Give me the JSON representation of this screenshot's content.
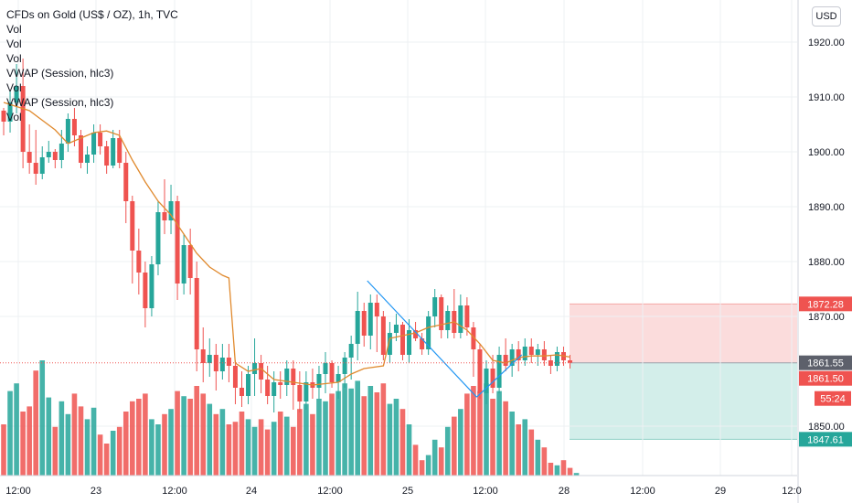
{
  "header": {
    "title": "CFDs on Gold (US$ / OZ), 1h, TVC",
    "indicators": [
      "Vol",
      "Vol",
      "Vol",
      "VWAP (Session, hlc3)",
      "Vol",
      "VWAP (Session, hlc3)",
      "Vol"
    ],
    "currency_button": "USD"
  },
  "colors": {
    "up": "#26a69a",
    "down": "#ef5350",
    "vwap": "#e08a2e",
    "trendline": "#2196f3",
    "stop_zone": "#fbdcdc",
    "target_zone": "#d3eeea",
    "grid": "#eef0f3"
  },
  "chart_data": {
    "type": "candlestick",
    "symbol": "CFDs on Gold (US$ / OZ)",
    "interval": "1h",
    "ylim": [
      1841,
      1926
    ],
    "y_ticks": [
      "1920.00",
      "1910.00",
      "1900.00",
      "1890.00",
      "1880.00",
      "1870.00",
      "1850.00"
    ],
    "x_ticks": [
      "12:00",
      "23",
      "12:00",
      "24",
      "12:00",
      "25",
      "12:00",
      "28",
      "12:00",
      "29",
      "12:0"
    ],
    "price_labels": [
      {
        "value": 1872.28,
        "text": "1872.28",
        "role": "stop"
      },
      {
        "value": 1861.55,
        "text": "1861.55",
        "role": "last"
      },
      {
        "value": 1861.5,
        "text": "1861.50",
        "role": "price"
      },
      {
        "value": 1857.9,
        "text": "55:24",
        "role": "countdown"
      },
      {
        "value": 1847.61,
        "text": "1847.61",
        "role": "target"
      }
    ],
    "position": {
      "entry": 1861.55,
      "stop": 1872.28,
      "target": 1847.61
    },
    "trendlines": [
      {
        "from": [
          56.5,
          1876.5
        ],
        "to": [
          73.5,
          1855.3
        ]
      },
      {
        "from": [
          73.5,
          1855.3
        ],
        "to": [
          80.5,
          1863
        ]
      }
    ],
    "candles": [
      [
        1907.5,
        1908.0,
        1903.0,
        1905.5
      ],
      [
        1905.5,
        1911.0,
        1903.5,
        1909.0
      ],
      [
        1909.0,
        1916.0,
        1907.0,
        1912.0
      ],
      [
        1912.0,
        1917.0,
        1897.0,
        1900.0
      ],
      [
        1900.0,
        1905.0,
        1896.0,
        1898.0
      ],
      [
        1898.0,
        1904.0,
        1894.0,
        1896.0
      ],
      [
        1896.0,
        1901.0,
        1895.0,
        1899.0
      ],
      [
        1899.0,
        1902.0,
        1898.0,
        1900.0
      ],
      [
        1900.0,
        1900.5,
        1897.0,
        1898.5
      ],
      [
        1898.5,
        1904.0,
        1897.0,
        1901.5
      ],
      [
        1901.5,
        1907.0,
        1900.0,
        1906.0
      ],
      [
        1906.0,
        1908.0,
        1901.0,
        1903.0
      ],
      [
        1903.0,
        1904.0,
        1897.0,
        1898.0
      ],
      [
        1898.0,
        1901.0,
        1896.0,
        1899.5
      ],
      [
        1899.5,
        1905.0,
        1898.0,
        1903.5
      ],
      [
        1903.5,
        1905.0,
        1899.5,
        1901.0
      ],
      [
        1901.0,
        1902.0,
        1896.0,
        1897.5
      ],
      [
        1897.5,
        1904.0,
        1897.0,
        1902.5
      ],
      [
        1902.5,
        1904.0,
        1897.0,
        1898.0
      ],
      [
        1898.0,
        1900.0,
        1887.0,
        1891.0
      ],
      [
        1891.0,
        1892.0,
        1876.0,
        1882.0
      ],
      [
        1882.0,
        1886.0,
        1874.0,
        1878.0
      ],
      [
        1878.0,
        1880.0,
        1868.0,
        1871.5
      ],
      [
        1871.5,
        1881.0,
        1870.0,
        1879.5
      ],
      [
        1879.5,
        1891.0,
        1877.5,
        1889.0
      ],
      [
        1889.0,
        1895.0,
        1885.0,
        1887.5
      ],
      [
        1887.5,
        1894.0,
        1885.0,
        1891.0
      ],
      [
        1891.0,
        1892.0,
        1873.0,
        1876.0
      ],
      [
        1876.0,
        1885.0,
        1874.0,
        1883.0
      ],
      [
        1883.0,
        1886.0,
        1874.0,
        1877.0
      ],
      [
        1877.0,
        1880.0,
        1860.0,
        1864.0
      ],
      [
        1864.0,
        1868.0,
        1858.0,
        1861.5
      ],
      [
        1861.5,
        1866.0,
        1859.0,
        1863.0
      ],
      [
        1863.0,
        1865.0,
        1856.5,
        1860.0
      ],
      [
        1860.0,
        1865.0,
        1858.5,
        1862.5
      ],
      [
        1862.5,
        1865.0,
        1858.0,
        1861.0
      ],
      [
        1861.0,
        1862.0,
        1854.0,
        1857.0
      ],
      [
        1857.0,
        1860.0,
        1853.5,
        1855.5
      ],
      [
        1855.5,
        1861.0,
        1854.0,
        1859.5
      ],
      [
        1859.5,
        1866.0,
        1855.5,
        1861.5
      ],
      [
        1861.5,
        1863.0,
        1856.0,
        1858.5
      ],
      [
        1858.5,
        1861.0,
        1854.0,
        1855.5
      ],
      [
        1855.5,
        1860.0,
        1852.5,
        1858.0
      ],
      [
        1858.0,
        1860.0,
        1855.0,
        1857.5
      ],
      [
        1857.5,
        1862.0,
        1855.5,
        1860.5
      ],
      [
        1860.5,
        1862.0,
        1853.0,
        1857.5
      ],
      [
        1857.5,
        1860.0,
        1852.5,
        1854.5
      ],
      [
        1854.5,
        1860.0,
        1853.0,
        1858.0
      ],
      [
        1858.0,
        1860.5,
        1855.0,
        1857.0
      ],
      [
        1857.0,
        1861.0,
        1855.0,
        1859.5
      ],
      [
        1859.5,
        1863.5,
        1856.0,
        1861.5
      ],
      [
        1861.5,
        1862.0,
        1857.0,
        1858.0
      ],
      [
        1858.0,
        1861.0,
        1855.0,
        1859.5
      ],
      [
        1859.5,
        1863.5,
        1857.0,
        1862.5
      ],
      [
        1862.5,
        1866.5,
        1858.5,
        1865.0
      ],
      [
        1865.0,
        1874.5,
        1862.0,
        1871.0
      ],
      [
        1871.0,
        1872.5,
        1864.5,
        1866.5
      ],
      [
        1866.5,
        1874.0,
        1864.0,
        1872.5
      ],
      [
        1872.5,
        1874.0,
        1863.5,
        1870.0
      ],
      [
        1870.0,
        1871.0,
        1862.0,
        1863.0
      ],
      [
        1863.0,
        1869.0,
        1861.5,
        1867.0
      ],
      [
        1867.0,
        1870.5,
        1865.5,
        1868.5
      ],
      [
        1868.5,
        1869.0,
        1862.0,
        1863.0
      ],
      [
        1863.0,
        1869.5,
        1861.5,
        1867.5
      ],
      [
        1867.5,
        1869.0,
        1865.5,
        1866.0
      ],
      [
        1866.0,
        1867.0,
        1863.0,
        1864.0
      ],
      [
        1864.0,
        1871.0,
        1863.0,
        1870.0
      ],
      [
        1870.0,
        1875.0,
        1868.0,
        1873.5
      ],
      [
        1873.5,
        1874.0,
        1866.0,
        1867.5
      ],
      [
        1867.5,
        1872.0,
        1866.0,
        1871.0
      ],
      [
        1871.0,
        1875.0,
        1866.0,
        1867.0
      ],
      [
        1867.0,
        1874.0,
        1866.0,
        1872.0
      ],
      [
        1872.0,
        1873.5,
        1866.5,
        1868.0
      ],
      [
        1868.0,
        1869.0,
        1859.0,
        1864.0
      ],
      [
        1864.0,
        1865.0,
        1855.0,
        1856.0
      ],
      [
        1856.0,
        1862.0,
        1854.0,
        1860.5
      ],
      [
        1860.5,
        1863.0,
        1856.0,
        1857.0
      ],
      [
        1857.0,
        1864.5,
        1856.0,
        1863.0
      ],
      [
        1863.0,
        1866.0,
        1860.0,
        1861.0
      ],
      [
        1861.0,
        1865.0,
        1859.0,
        1864.0
      ],
      [
        1864.0,
        1865.5,
        1860.0,
        1862.0
      ],
      [
        1862.0,
        1866.0,
        1861.0,
        1864.5
      ],
      [
        1864.5,
        1866.0,
        1861.5,
        1863.0
      ],
      [
        1863.0,
        1865.0,
        1861.0,
        1864.0
      ],
      [
        1864.0,
        1865.5,
        1861.0,
        1862.0
      ],
      [
        1862.0,
        1863.0,
        1859.5,
        1861.0
      ],
      [
        1861.0,
        1864.5,
        1860.0,
        1863.5
      ],
      [
        1863.5,
        1864.5,
        1861.0,
        1862.0
      ],
      [
        1862.0,
        1863.0,
        1860.5,
        1861.55
      ]
    ],
    "volumes": [
      40,
      66,
      72,
      50,
      54,
      82,
      90,
      61,
      38,
      58,
      48,
      64,
      54,
      44,
      53,
      32,
      25,
      35,
      38,
      50,
      58,
      60,
      64,
      44,
      40,
      48,
      52,
      66,
      62,
      60,
      70,
      64,
      56,
      48,
      52,
      40,
      42,
      50,
      44,
      38,
      44,
      36,
      42,
      50,
      46,
      38,
      52,
      56,
      48,
      60,
      58,
      64,
      66,
      72,
      68,
      74,
      62,
      70,
      65,
      72,
      56,
      60,
      52,
      40,
      24,
      12,
      16,
      28,
      22,
      38,
      46,
      52,
      64,
      70,
      66,
      72,
      60,
      66,
      58,
      50,
      40,
      44,
      36,
      28,
      22,
      10,
      8,
      12,
      6,
      2
    ],
    "vwap": [
      {
        "i": 0,
        "v": 1909.0
      },
      {
        "i": 4,
        "v": 1907.5
      },
      {
        "i": 8,
        "v": 1904.0
      },
      {
        "i": 10,
        "v": 1901.5
      },
      {
        "i": 12,
        "v": 1902.5
      },
      {
        "i": 14,
        "v": 1903.5
      },
      {
        "i": 16,
        "v": 1903.8
      },
      {
        "i": 18,
        "v": 1903.0
      },
      {
        "i": 20,
        "v": 1898.5
      },
      {
        "i": 22,
        "v": 1894.5
      },
      {
        "i": 24,
        "v": 1891.0
      },
      {
        "i": 26,
        "v": 1888.5
      },
      {
        "i": 28,
        "v": 1885.0
      },
      {
        "i": 30,
        "v": 1881.5
      },
      {
        "i": 32,
        "v": 1879.0
      },
      {
        "i": 34,
        "v": 1877.5
      },
      {
        "i": 35,
        "v": 1877.0
      },
      {
        "i": 36,
        "v": 1861.5
      },
      {
        "i": 38,
        "v": 1860.0
      },
      {
        "i": 40,
        "v": 1860.5
      },
      {
        "i": 42,
        "v": 1858.5
      },
      {
        "i": 45,
        "v": 1858.0
      },
      {
        "i": 48,
        "v": 1857.5
      },
      {
        "i": 52,
        "v": 1858.0
      },
      {
        "i": 54,
        "v": 1859.5
      },
      {
        "i": 56,
        "v": 1860.5
      },
      {
        "i": 59,
        "v": 1861.0
      },
      {
        "i": 60,
        "v": 1866.0
      },
      {
        "i": 62,
        "v": 1866.5
      },
      {
        "i": 64,
        "v": 1867.0
      },
      {
        "i": 66,
        "v": 1868.0
      },
      {
        "i": 68,
        "v": 1868.5
      },
      {
        "i": 70,
        "v": 1869.0
      },
      {
        "i": 72,
        "v": 1867.5
      },
      {
        "i": 74,
        "v": 1865.0
      },
      {
        "i": 76,
        "v": 1862.0
      },
      {
        "i": 78,
        "v": 1861.5
      },
      {
        "i": 80,
        "v": 1862.5
      },
      {
        "i": 82,
        "v": 1862.8
      },
      {
        "i": 84,
        "v": 1862.8
      },
      {
        "i": 86,
        "v": 1863.0
      },
      {
        "i": 88,
        "v": 1862.6
      }
    ]
  }
}
